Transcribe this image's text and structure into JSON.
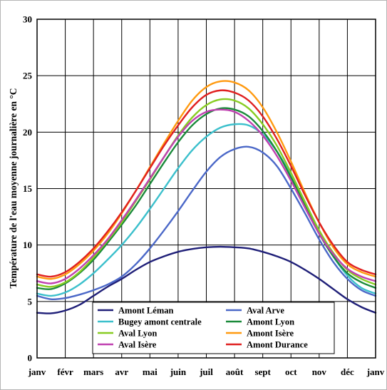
{
  "chart_data": {
    "type": "line",
    "title": "",
    "xlabel": "",
    "ylabel": "Température de l'eau moyenne journalière en °C",
    "x_ticks": [
      "janv",
      "févr",
      "mars",
      "avr",
      "mai",
      "juin",
      "juil",
      "août",
      "sept",
      "oct",
      "nov",
      "déc",
      "janv"
    ],
    "ylim": [
      0,
      30
    ],
    "y_ticks": [
      0,
      5,
      10,
      15,
      20,
      25,
      30
    ],
    "grid": true,
    "legend_position": "bottom-center",
    "x_values": [
      0,
      0.5,
      1,
      1.5,
      2,
      2.5,
      3,
      3.5,
      4,
      4.5,
      5,
      5.5,
      6,
      6.5,
      7,
      7.5,
      8,
      8.5,
      9,
      9.5,
      10,
      10.5,
      11,
      11.5,
      12
    ],
    "series": [
      {
        "name": "Amont Léman",
        "color": "#1f1f78",
        "values": [
          4.0,
          3.95,
          4.2,
          4.7,
          5.5,
          6.3,
          7.0,
          7.8,
          8.5,
          9.0,
          9.4,
          9.65,
          9.8,
          9.85,
          9.8,
          9.7,
          9.4,
          9.0,
          8.5,
          7.8,
          7.0,
          6.1,
          5.2,
          4.5,
          4.0
        ]
      },
      {
        "name": "Aval Arve",
        "color": "#4b68c8",
        "values": [
          5.5,
          5.2,
          5.3,
          5.6,
          6.0,
          6.5,
          7.2,
          8.3,
          9.7,
          11.3,
          13.0,
          14.8,
          16.5,
          17.8,
          18.5,
          18.7,
          18.2,
          17.0,
          15.0,
          12.8,
          10.5,
          8.5,
          7.0,
          6.0,
          5.5
        ]
      },
      {
        "name": "Bugey amont centrale",
        "color": "#3cc0cc",
        "values": [
          5.7,
          5.5,
          5.8,
          6.5,
          7.5,
          8.7,
          10.0,
          11.5,
          13.2,
          15.0,
          16.8,
          18.4,
          19.6,
          20.4,
          20.7,
          20.6,
          19.8,
          18.3,
          16.2,
          13.8,
          11.2,
          9.0,
          7.3,
          6.2,
          5.7
        ]
      },
      {
        "name": "Amont Lyon",
        "color": "#1a8a3a",
        "values": [
          6.2,
          6.1,
          6.6,
          7.5,
          8.7,
          10.2,
          11.8,
          13.5,
          15.4,
          17.3,
          19.1,
          20.6,
          21.6,
          22.1,
          22.0,
          21.4,
          20.1,
          18.3,
          16.0,
          13.5,
          11.0,
          9.0,
          7.5,
          6.7,
          6.2
        ]
      },
      {
        "name": "Aval Lyon",
        "color": "#88cc22",
        "values": [
          6.5,
          6.3,
          6.7,
          7.6,
          8.9,
          10.4,
          12.0,
          13.9,
          15.8,
          17.8,
          19.7,
          21.3,
          22.4,
          22.9,
          22.8,
          22.1,
          20.7,
          18.8,
          16.4,
          13.8,
          11.3,
          9.3,
          7.8,
          7.0,
          6.5
        ]
      },
      {
        "name": "Amont Isère",
        "color": "#ff9a10",
        "values": [
          7.2,
          7.0,
          7.4,
          8.3,
          9.5,
          11.0,
          12.8,
          14.8,
          16.9,
          19.0,
          21.0,
          22.8,
          24.0,
          24.5,
          24.4,
          23.7,
          22.2,
          20.0,
          17.4,
          14.6,
          12.0,
          9.8,
          8.3,
          7.6,
          7.2
        ]
      },
      {
        "name": "Aval Isère",
        "color": "#c040b0",
        "values": [
          6.8,
          6.6,
          7.0,
          7.9,
          9.1,
          10.5,
          12.2,
          14.0,
          15.9,
          17.8,
          19.6,
          21.0,
          21.8,
          22.0,
          21.8,
          21.0,
          19.7,
          17.9,
          15.7,
          13.3,
          11.0,
          9.2,
          7.9,
          7.2,
          6.8
        ]
      },
      {
        "name": "Amont Durance",
        "color": "#e02020",
        "values": [
          7.4,
          7.2,
          7.6,
          8.5,
          9.7,
          11.2,
          12.9,
          14.8,
          16.8,
          18.8,
          20.6,
          22.2,
          23.3,
          23.7,
          23.5,
          22.8,
          21.4,
          19.4,
          17.0,
          14.4,
          12.0,
          10.0,
          8.5,
          7.8,
          7.4
        ]
      }
    ]
  }
}
